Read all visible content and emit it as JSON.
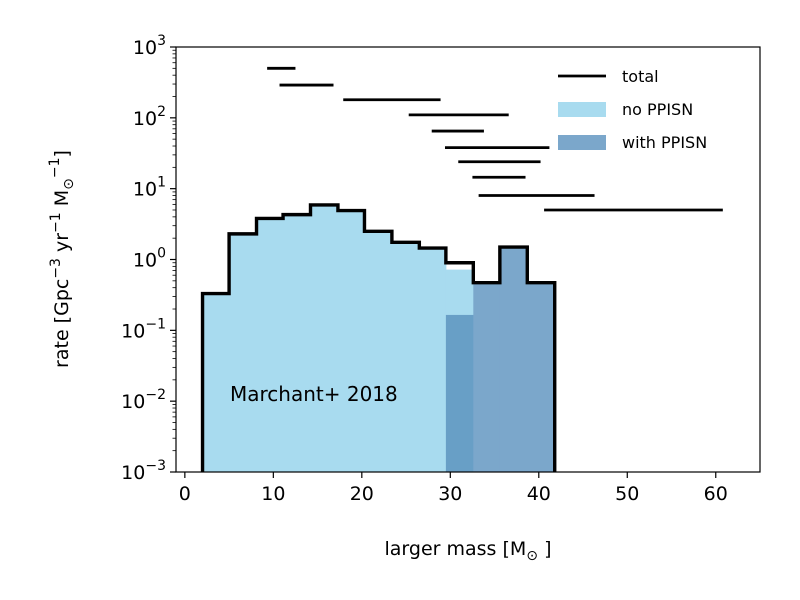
{
  "chart_data": {
    "type": "histogram",
    "annotation": "Marchant+ 2018",
    "xlabel": "larger mass [M",
    "xlabel_sub": "⊙",
    "xlabel_end": "]",
    "ylabel": {
      "prefix": "rate [Gpc",
      "exp1": "−3",
      "mid1": " yr",
      "exp2": "−1",
      "mid2": " M",
      "sub": "⊙",
      "exp3": "−1",
      "suffix": "]"
    },
    "xlim": [
      -1,
      65
    ],
    "ylim_log10": [
      -3,
      3
    ],
    "log_y": true,
    "x_ticks": [
      {
        "value": 0,
        "label": "0"
      },
      {
        "value": 10,
        "label": "10"
      },
      {
        "value": 20,
        "label": "20"
      },
      {
        "value": 30,
        "label": "30"
      },
      {
        "value": 40,
        "label": "40"
      },
      {
        "value": 50,
        "label": "50"
      },
      {
        "value": 60,
        "label": "60"
      }
    ],
    "y_ticks": [
      {
        "exp": -3,
        "base": "10",
        "sup": "−3"
      },
      {
        "exp": -2,
        "base": "10",
        "sup": "−2"
      },
      {
        "exp": -1,
        "base": "10",
        "sup": "−1"
      },
      {
        "exp": 0,
        "base": "10",
        "sup": "0"
      },
      {
        "exp": 1,
        "base": "10",
        "sup": "1"
      },
      {
        "exp": 2,
        "base": "10",
        "sup": "2"
      },
      {
        "exp": 3,
        "base": "10",
        "sup": "3"
      }
    ],
    "colors": {
      "total": "#000000",
      "no_ppisn": "#a8dbef",
      "with_ppisn": "#7ba7cb",
      "overlap": "#689fc6"
    },
    "legend": [
      {
        "key": "total",
        "label": "total",
        "kind": "line"
      },
      {
        "key": "no_ppisn",
        "label": "no PPISN",
        "kind": "patch"
      },
      {
        "key": "with_ppisn",
        "label": "with PPISN",
        "kind": "patch"
      }
    ],
    "series": [
      {
        "name": "no PPISN",
        "bins": [
          {
            "x0": 2.0,
            "x1": 5.0,
            "y": 0.33
          },
          {
            "x0": 5.0,
            "x1": 8.1,
            "y": 2.3
          },
          {
            "x0": 8.1,
            "x1": 11.1,
            "y": 3.8
          },
          {
            "x0": 11.1,
            "x1": 14.2,
            "y": 4.3
          },
          {
            "x0": 14.2,
            "x1": 17.3,
            "y": 5.9
          },
          {
            "x0": 17.3,
            "x1": 20.3,
            "y": 4.9
          },
          {
            "x0": 20.3,
            "x1": 23.4,
            "y": 2.5
          },
          {
            "x0": 23.4,
            "x1": 26.5,
            "y": 1.75
          },
          {
            "x0": 26.5,
            "x1": 29.5,
            "y": 1.45
          },
          {
            "x0": 29.5,
            "x1": 32.6,
            "y": 0.72
          }
        ]
      },
      {
        "name": "with PPISN",
        "bins": [
          {
            "x0": 29.5,
            "x1": 32.6,
            "y": 0.165
          },
          {
            "x0": 32.6,
            "x1": 35.6,
            "y": 0.47
          },
          {
            "x0": 35.6,
            "x1": 38.7,
            "y": 1.5
          },
          {
            "x0": 38.7,
            "x1": 41.8,
            "y": 0.47
          }
        ]
      },
      {
        "name": "total",
        "bins": [
          {
            "x0": 2.0,
            "x1": 5.0,
            "y": 0.33
          },
          {
            "x0": 5.0,
            "x1": 8.1,
            "y": 2.3
          },
          {
            "x0": 8.1,
            "x1": 11.1,
            "y": 3.8
          },
          {
            "x0": 11.1,
            "x1": 14.2,
            "y": 4.3
          },
          {
            "x0": 14.2,
            "x1": 17.3,
            "y": 5.9
          },
          {
            "x0": 17.3,
            "x1": 20.3,
            "y": 4.9
          },
          {
            "x0": 20.3,
            "x1": 23.4,
            "y": 2.5
          },
          {
            "x0": 23.4,
            "x1": 26.5,
            "y": 1.75
          },
          {
            "x0": 26.5,
            "x1": 29.5,
            "y": 1.45
          },
          {
            "x0": 29.5,
            "x1": 32.6,
            "y": 0.9
          },
          {
            "x0": 32.6,
            "x1": 35.6,
            "y": 0.47
          },
          {
            "x0": 35.6,
            "x1": 38.7,
            "y": 1.5
          },
          {
            "x0": 38.7,
            "x1": 41.8,
            "y": 0.47
          }
        ]
      }
    ],
    "ranges": [
      {
        "x0": 9.3,
        "x1": 12.5,
        "y": 500
      },
      {
        "x0": 10.7,
        "x1": 16.8,
        "y": 290
      },
      {
        "x0": 17.9,
        "x1": 28.9,
        "y": 180
      },
      {
        "x0": 25.3,
        "x1": 36.6,
        "y": 110
      },
      {
        "x0": 27.9,
        "x1": 33.8,
        "y": 65
      },
      {
        "x0": 29.4,
        "x1": 41.2,
        "y": 38
      },
      {
        "x0": 30.9,
        "x1": 40.2,
        "y": 24
      },
      {
        "x0": 32.5,
        "x1": 38.5,
        "y": 14.5
      },
      {
        "x0": 33.2,
        "x1": 46.3,
        "y": 8
      },
      {
        "x0": 40.6,
        "x1": 60.8,
        "y": 5
      }
    ]
  }
}
